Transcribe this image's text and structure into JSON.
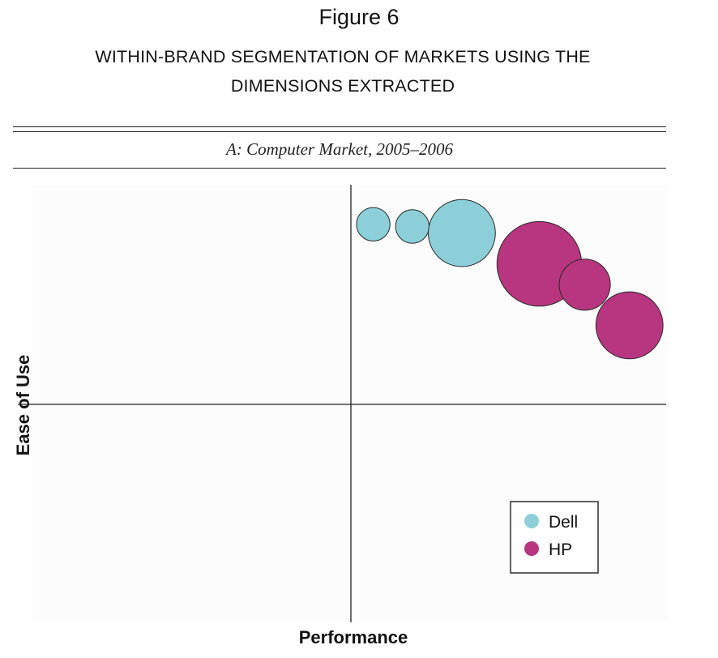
{
  "figure": {
    "title": "Figure 6",
    "subtitle_lines": [
      "WITHIN-BRAND SEGMENTATION OF MARKETS USING THE",
      "DIMENSIONS EXTRACTED"
    ],
    "panel_title": "A: Computer Market, 2005–2006"
  },
  "chart_data": {
    "type": "scatter",
    "subtype": "bubble",
    "xlabel": "Performance",
    "ylabel": "Ease of Use",
    "xlim": [
      -1,
      1
    ],
    "ylim": [
      -1,
      1
    ],
    "grid": false,
    "axes_cross_at_origin": true,
    "tick_labels": false,
    "legend_position": "bottom-right",
    "series": [
      {
        "name": "Dell",
        "color": "#8ccfd9",
        "points": [
          {
            "x": 0.14,
            "y": 0.82,
            "size": 0.105
          },
          {
            "x": 0.385,
            "y": 0.81,
            "size": 0.105
          },
          {
            "x": 0.695,
            "y": 0.78,
            "size": 0.21
          }
        ]
      },
      {
        "name": "HP",
        "color": "#b8357f",
        "points": [
          {
            "x": 1.18,
            "y": 0.64,
            "size": 0.265
          },
          {
            "x": 1.465,
            "y": 0.545,
            "size": 0.16
          },
          {
            "x": 1.745,
            "y": 0.36,
            "size": 0.21
          }
        ]
      }
    ]
  }
}
